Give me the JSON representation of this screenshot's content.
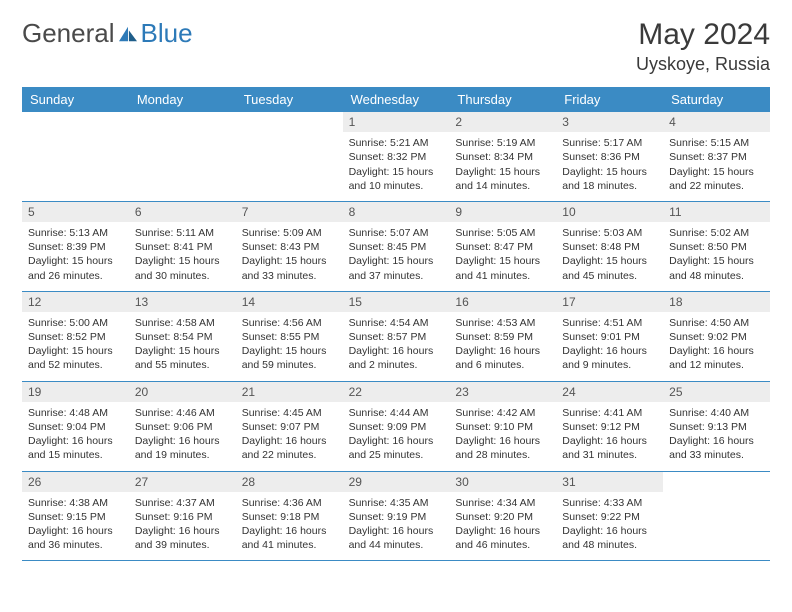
{
  "brand": {
    "part1": "General",
    "part2": "Blue"
  },
  "title": {
    "monthYear": "May 2024",
    "location": "Uyskoye, Russia"
  },
  "colors": {
    "header_bg": "#3b8bc4",
    "header_text": "#ffffff",
    "daynum_bg": "#ededed",
    "daynum_text": "#555555",
    "cell_text": "#333333",
    "border": "#3b8bc4",
    "brand_gray": "#4a4a4a",
    "brand_blue": "#2d7ab8",
    "background": "#ffffff"
  },
  "typography": {
    "title_fontsize": 30,
    "location_fontsize": 18,
    "header_fontsize": 13,
    "cell_fontsize": 10.5,
    "daynum_fontsize": 12
  },
  "layout": {
    "columns": 7,
    "rows": 5,
    "leading_blanks": 3
  },
  "dayNames": [
    "Sunday",
    "Monday",
    "Tuesday",
    "Wednesday",
    "Thursday",
    "Friday",
    "Saturday"
  ],
  "labels": {
    "sunrise": "Sunrise:",
    "sunset": "Sunset:",
    "daylight": "Daylight:"
  },
  "days": [
    {
      "n": 1,
      "sr": "5:21 AM",
      "ss": "8:32 PM",
      "dl": "15 hours and 10 minutes."
    },
    {
      "n": 2,
      "sr": "5:19 AM",
      "ss": "8:34 PM",
      "dl": "15 hours and 14 minutes."
    },
    {
      "n": 3,
      "sr": "5:17 AM",
      "ss": "8:36 PM",
      "dl": "15 hours and 18 minutes."
    },
    {
      "n": 4,
      "sr": "5:15 AM",
      "ss": "8:37 PM",
      "dl": "15 hours and 22 minutes."
    },
    {
      "n": 5,
      "sr": "5:13 AM",
      "ss": "8:39 PM",
      "dl": "15 hours and 26 minutes."
    },
    {
      "n": 6,
      "sr": "5:11 AM",
      "ss": "8:41 PM",
      "dl": "15 hours and 30 minutes."
    },
    {
      "n": 7,
      "sr": "5:09 AM",
      "ss": "8:43 PM",
      "dl": "15 hours and 33 minutes."
    },
    {
      "n": 8,
      "sr": "5:07 AM",
      "ss": "8:45 PM",
      "dl": "15 hours and 37 minutes."
    },
    {
      "n": 9,
      "sr": "5:05 AM",
      "ss": "8:47 PM",
      "dl": "15 hours and 41 minutes."
    },
    {
      "n": 10,
      "sr": "5:03 AM",
      "ss": "8:48 PM",
      "dl": "15 hours and 45 minutes."
    },
    {
      "n": 11,
      "sr": "5:02 AM",
      "ss": "8:50 PM",
      "dl": "15 hours and 48 minutes."
    },
    {
      "n": 12,
      "sr": "5:00 AM",
      "ss": "8:52 PM",
      "dl": "15 hours and 52 minutes."
    },
    {
      "n": 13,
      "sr": "4:58 AM",
      "ss": "8:54 PM",
      "dl": "15 hours and 55 minutes."
    },
    {
      "n": 14,
      "sr": "4:56 AM",
      "ss": "8:55 PM",
      "dl": "15 hours and 59 minutes."
    },
    {
      "n": 15,
      "sr": "4:54 AM",
      "ss": "8:57 PM",
      "dl": "16 hours and 2 minutes."
    },
    {
      "n": 16,
      "sr": "4:53 AM",
      "ss": "8:59 PM",
      "dl": "16 hours and 6 minutes."
    },
    {
      "n": 17,
      "sr": "4:51 AM",
      "ss": "9:01 PM",
      "dl": "16 hours and 9 minutes."
    },
    {
      "n": 18,
      "sr": "4:50 AM",
      "ss": "9:02 PM",
      "dl": "16 hours and 12 minutes."
    },
    {
      "n": 19,
      "sr": "4:48 AM",
      "ss": "9:04 PM",
      "dl": "16 hours and 15 minutes."
    },
    {
      "n": 20,
      "sr": "4:46 AM",
      "ss": "9:06 PM",
      "dl": "16 hours and 19 minutes."
    },
    {
      "n": 21,
      "sr": "4:45 AM",
      "ss": "9:07 PM",
      "dl": "16 hours and 22 minutes."
    },
    {
      "n": 22,
      "sr": "4:44 AM",
      "ss": "9:09 PM",
      "dl": "16 hours and 25 minutes."
    },
    {
      "n": 23,
      "sr": "4:42 AM",
      "ss": "9:10 PM",
      "dl": "16 hours and 28 minutes."
    },
    {
      "n": 24,
      "sr": "4:41 AM",
      "ss": "9:12 PM",
      "dl": "16 hours and 31 minutes."
    },
    {
      "n": 25,
      "sr": "4:40 AM",
      "ss": "9:13 PM",
      "dl": "16 hours and 33 minutes."
    },
    {
      "n": 26,
      "sr": "4:38 AM",
      "ss": "9:15 PM",
      "dl": "16 hours and 36 minutes."
    },
    {
      "n": 27,
      "sr": "4:37 AM",
      "ss": "9:16 PM",
      "dl": "16 hours and 39 minutes."
    },
    {
      "n": 28,
      "sr": "4:36 AM",
      "ss": "9:18 PM",
      "dl": "16 hours and 41 minutes."
    },
    {
      "n": 29,
      "sr": "4:35 AM",
      "ss": "9:19 PM",
      "dl": "16 hours and 44 minutes."
    },
    {
      "n": 30,
      "sr": "4:34 AM",
      "ss": "9:20 PM",
      "dl": "16 hours and 46 minutes."
    },
    {
      "n": 31,
      "sr": "4:33 AM",
      "ss": "9:22 PM",
      "dl": "16 hours and 48 minutes."
    }
  ]
}
